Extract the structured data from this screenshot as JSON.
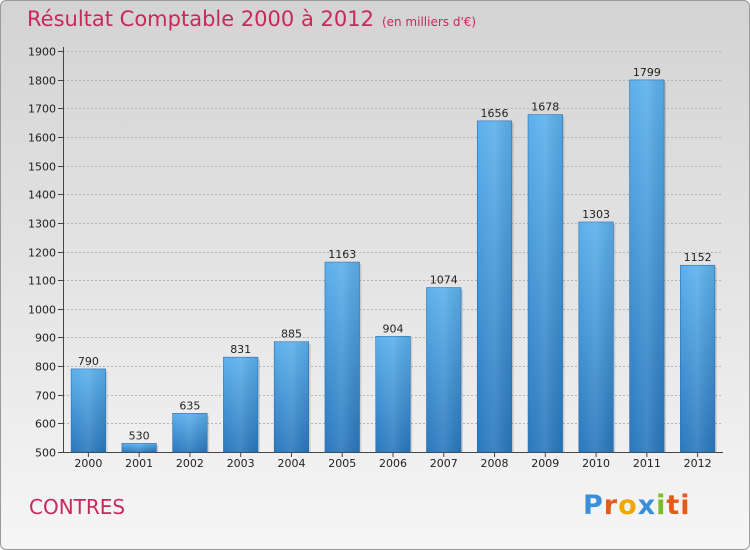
{
  "title": "Résultat Comptable 2000 à 2012",
  "unit": "(en milliers d'€)",
  "commune": "CONTRES",
  "logo": [
    "P",
    "r",
    "o",
    "x",
    "i",
    "ti"
  ],
  "colors": {
    "bar": "#4a9fe0",
    "title": "#c8285a"
  },
  "chart_data": {
    "type": "bar",
    "title": "Résultat Comptable 2000 à 2012",
    "subtitle": "(en milliers d'€)",
    "categories": [
      "2000",
      "2001",
      "2002",
      "2003",
      "2004",
      "2005",
      "2006",
      "2007",
      "2008",
      "2009",
      "2010",
      "2011",
      "2012"
    ],
    "values": [
      790,
      530,
      635,
      831,
      885,
      1163,
      904,
      1074,
      1656,
      1678,
      1303,
      1799,
      1152
    ],
    "ylim": [
      500,
      1900
    ],
    "yticks": [
      500,
      600,
      700,
      800,
      900,
      1000,
      1100,
      1200,
      1300,
      1400,
      1500,
      1600,
      1700,
      1800,
      1900
    ],
    "grid": true,
    "legend": "none"
  }
}
